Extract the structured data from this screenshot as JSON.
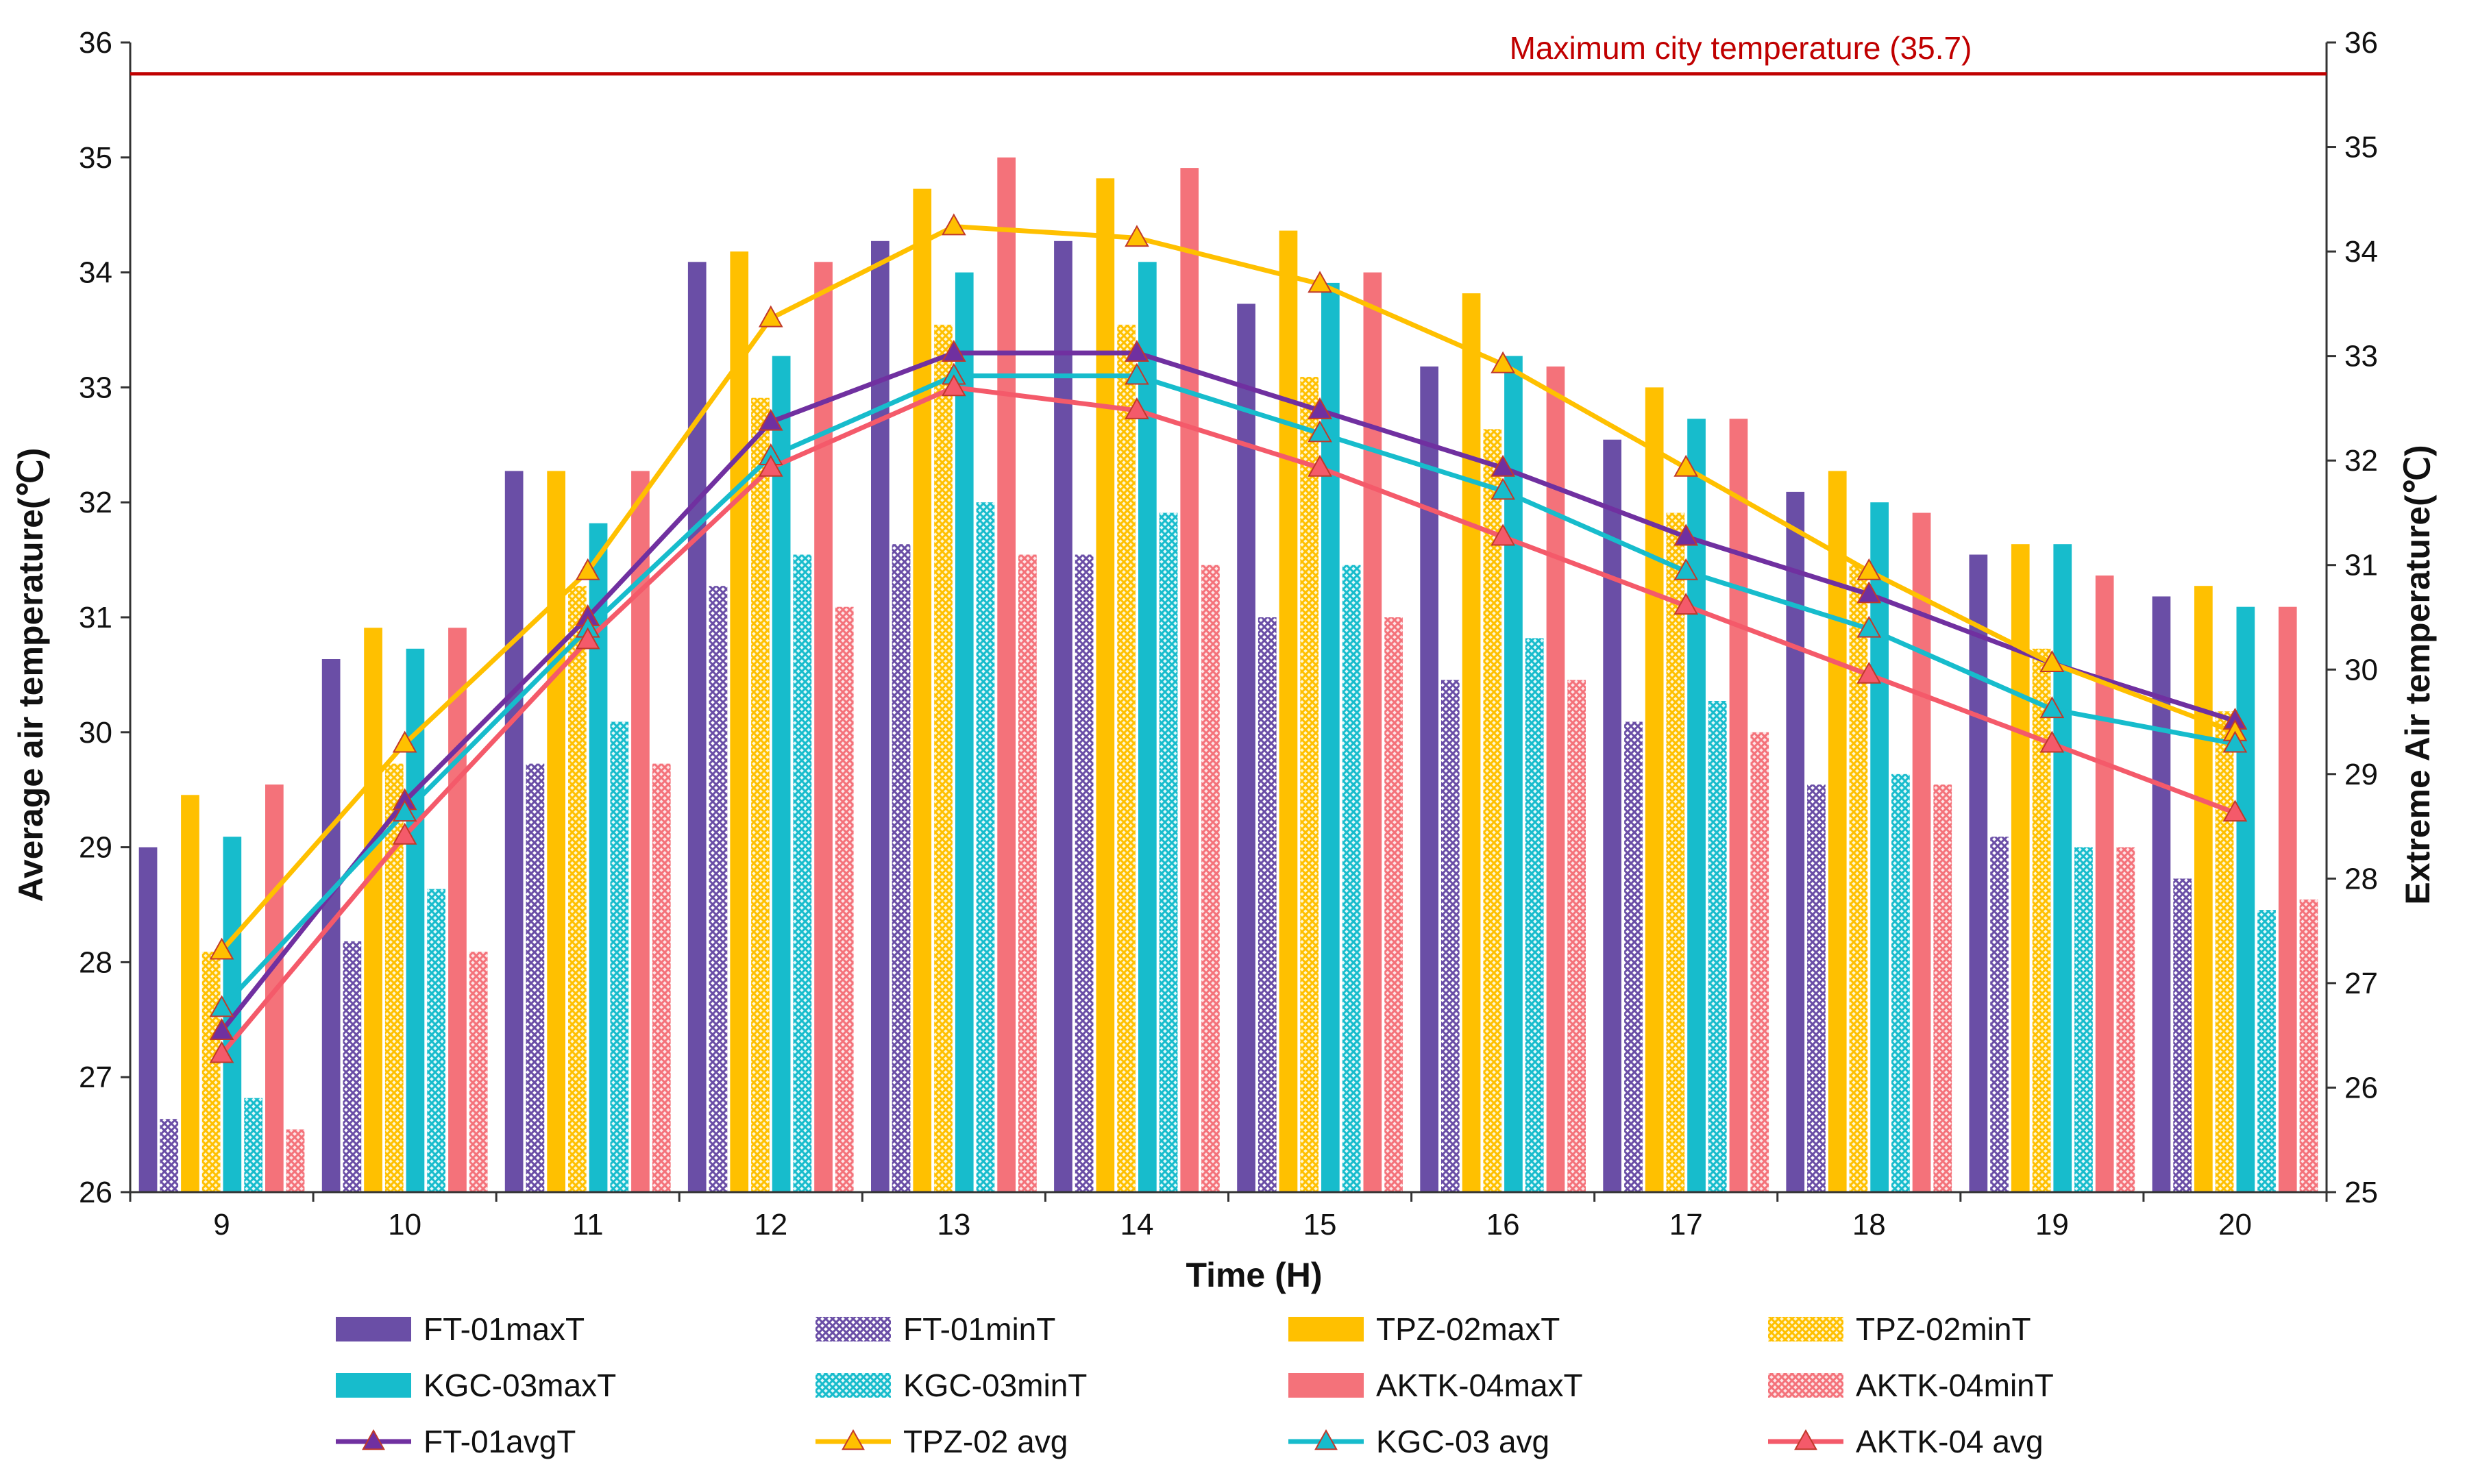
{
  "chart_data": {
    "type": "bar",
    "xlabel": "Time (H)",
    "ylabel_left": "Average air temperature(℃)",
    "ylabel_right": "Extreme Air temperature(℃)",
    "ylim_left": [
      26,
      36
    ],
    "ylim_right": [
      25,
      36
    ],
    "yticks_left": [
      "26",
      "27",
      "28",
      "29",
      "30",
      "31",
      "32",
      "33",
      "34",
      "35",
      "36"
    ],
    "yticks_right": [
      "25",
      "26",
      "27",
      "28",
      "29",
      "30",
      "31",
      "32",
      "33",
      "34",
      "35",
      "36"
    ],
    "categories": [
      "9",
      "10",
      "11",
      "12",
      "13",
      "14",
      "15",
      "16",
      "17",
      "18",
      "19",
      "20"
    ],
    "reference_line": {
      "label": "Maximum city temperature (35.7)",
      "value": 35.7,
      "color": "#c00000",
      "axis": "right"
    },
    "bar_series": [
      {
        "name": "FT-01maxT",
        "color": "#6a4ea6",
        "pattern": "solid",
        "axis": "right",
        "values": [
          28.3,
          30.1,
          31.9,
          33.9,
          34.1,
          34.1,
          33.5,
          32.9,
          32.2,
          31.7,
          31.1,
          30.7
        ]
      },
      {
        "name": "FT-01minT",
        "color": "#6a4ea6",
        "pattern": "hatch",
        "axis": "right",
        "values": [
          25.7,
          27.4,
          29.1,
          30.8,
          31.2,
          31.1,
          30.5,
          29.9,
          29.5,
          28.9,
          28.4,
          28.0
        ]
      },
      {
        "name": "TPZ-02maxT",
        "color": "#ffc000",
        "pattern": "solid",
        "axis": "right",
        "values": [
          28.8,
          30.4,
          31.9,
          34.0,
          34.6,
          34.7,
          34.2,
          33.6,
          32.7,
          31.9,
          31.2,
          30.8
        ]
      },
      {
        "name": "TPZ-02minT",
        "color": "#ffc000",
        "pattern": "hatch",
        "axis": "right",
        "values": [
          27.3,
          29.1,
          30.8,
          32.6,
          33.3,
          33.3,
          32.8,
          32.3,
          31.5,
          31.0,
          30.2,
          29.6
        ]
      },
      {
        "name": "KGC-03maxT",
        "color": "#17bccc",
        "pattern": "solid",
        "axis": "right",
        "values": [
          28.4,
          30.2,
          31.4,
          33.0,
          33.8,
          33.9,
          33.7,
          33.0,
          32.4,
          31.6,
          31.2,
          30.6
        ]
      },
      {
        "name": "KGC-03minT",
        "color": "#17bccc",
        "pattern": "hatch",
        "axis": "right",
        "values": [
          25.9,
          27.9,
          29.5,
          31.1,
          31.6,
          31.5,
          31.0,
          30.3,
          29.7,
          29.0,
          28.3,
          27.7
        ]
      },
      {
        "name": "AKTK-04maxT",
        "color": "#f4727a",
        "pattern": "solid",
        "axis": "right",
        "values": [
          28.9,
          30.4,
          31.9,
          33.9,
          34.9,
          34.8,
          33.8,
          32.9,
          32.4,
          31.5,
          30.9,
          30.6
        ]
      },
      {
        "name": "AKTK-04minT",
        "color": "#f4727a",
        "pattern": "hatch",
        "axis": "right",
        "values": [
          25.6,
          27.3,
          29.1,
          30.6,
          31.1,
          31.0,
          30.5,
          29.9,
          29.4,
          28.9,
          28.3,
          27.8
        ]
      }
    ],
    "line_series": [
      {
        "name": "FT-01avgT",
        "color": "#7030a0",
        "marker": "triangle",
        "axis": "left",
        "values": [
          27.4,
          29.4,
          31.0,
          32.7,
          33.3,
          33.3,
          32.8,
          32.3,
          31.7,
          31.2,
          30.6,
          30.1
        ]
      },
      {
        "name": "TPZ-02 avg",
        "color": "#ffc000",
        "marker": "triangle",
        "axis": "left",
        "values": [
          28.1,
          29.9,
          31.4,
          33.6,
          34.4,
          34.3,
          33.9,
          33.2,
          32.3,
          31.4,
          30.6,
          30.0
        ]
      },
      {
        "name": "KGC-03 avg",
        "color": "#17bccc",
        "marker": "triangle",
        "axis": "left",
        "values": [
          27.6,
          29.3,
          30.9,
          32.4,
          33.1,
          33.1,
          32.6,
          32.1,
          31.4,
          30.9,
          30.2,
          29.9
        ]
      },
      {
        "name": "AKTK-04 avg",
        "color": "#f45a6a",
        "marker": "triangle",
        "axis": "left",
        "values": [
          27.2,
          29.1,
          30.8,
          32.3,
          33.0,
          32.8,
          32.3,
          31.7,
          31.1,
          30.5,
          29.9,
          29.3
        ]
      }
    ],
    "legend": {
      "placement": "bottom",
      "entries": [
        "FT-01maxT",
        "FT-01minT",
        "TPZ-02maxT",
        "TPZ-02minT",
        "KGC-03maxT",
        "KGC-03minT",
        "AKTK-04maxT",
        "AKTK-04minT",
        "FT-01avgT",
        "TPZ-02 avg",
        "KGC-03 avg",
        "AKTK-04 avg"
      ]
    }
  }
}
